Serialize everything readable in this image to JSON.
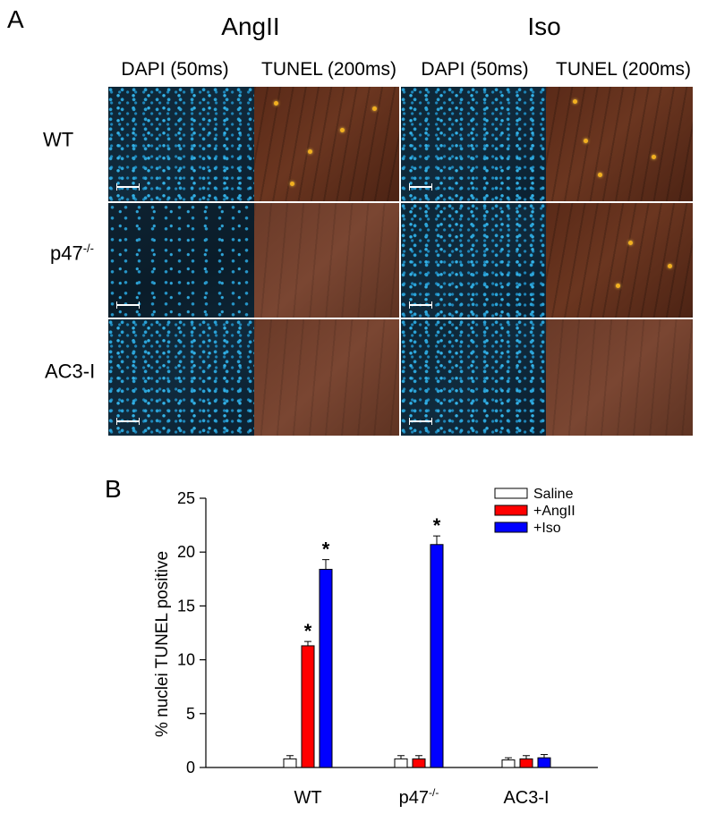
{
  "panel_a": {
    "letter": "A",
    "conditions": [
      "AngII",
      "Iso"
    ],
    "channels": [
      "DAPI (50ms)",
      "TUNEL (200ms)",
      "DAPI (50ms)",
      "TUNEL (200ms)"
    ],
    "rows": [
      {
        "label": "WT",
        "sup": ""
      },
      {
        "label": "p47",
        "sup": "-/-"
      },
      {
        "label": "AC3-I",
        "sup": ""
      }
    ]
  },
  "panel_b": {
    "letter": "B"
  },
  "chart_data": {
    "type": "bar",
    "ylabel": "% nuclei TUNEL positive",
    "xlabel": "",
    "ylim": [
      0,
      25
    ],
    "yticks": [
      0,
      5,
      10,
      15,
      20,
      25
    ],
    "categories": [
      {
        "label": "WT",
        "sup": ""
      },
      {
        "label": "p47",
        "sup": "-/-"
      },
      {
        "label": "AC3-I",
        "sup": ""
      }
    ],
    "series": [
      {
        "name": "Saline",
        "color": "#ffffff",
        "values": [
          0.8,
          0.8,
          0.7
        ],
        "errors": [
          0.3,
          0.3,
          0.2
        ]
      },
      {
        "name": "+AngII",
        "color": "#ff0000",
        "values": [
          11.3,
          0.8,
          0.8
        ],
        "errors": [
          0.4,
          0.3,
          0.3
        ]
      },
      {
        "name": "+Iso",
        "color": "#0000ff",
        "values": [
          18.4,
          20.7,
          0.9
        ],
        "errors": [
          0.9,
          0.8,
          0.3
        ]
      }
    ],
    "significance": [
      {
        "category": 0,
        "series": 1,
        "mark": "*"
      },
      {
        "category": 0,
        "series": 2,
        "mark": "*"
      },
      {
        "category": 1,
        "series": 2,
        "mark": "*"
      }
    ],
    "legend_position": "top-right",
    "grid": false
  }
}
